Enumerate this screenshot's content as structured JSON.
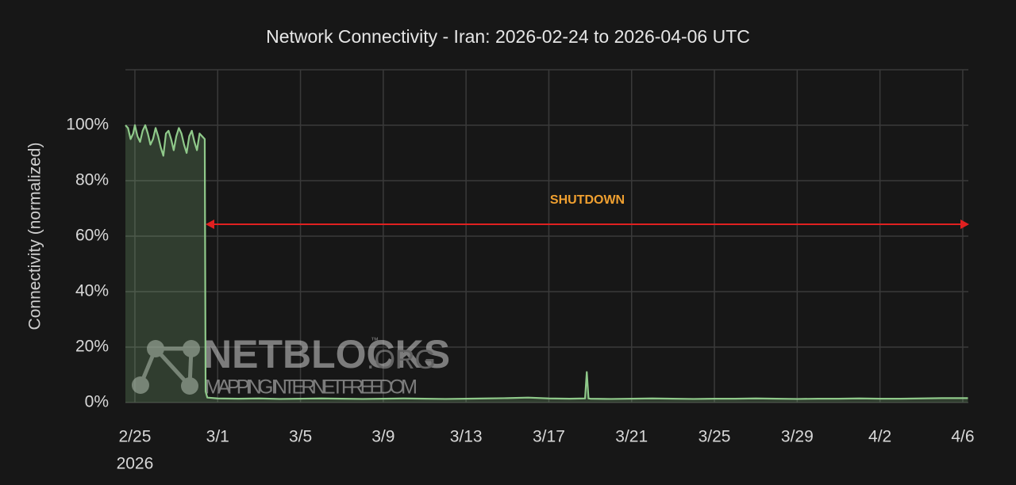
{
  "chart_data": {
    "type": "line",
    "title": "Network Connectivity - Iran: 2026-02-24 to 2026-04-06 UTC",
    "ylabel": "Connectivity (normalized)",
    "x": [
      "2026-02-24T13:00Z",
      "2026-02-24T16:00Z",
      "2026-02-24T19:00Z",
      "2026-02-24T22:00Z",
      "2026-02-25T00:00Z",
      "2026-02-25T03:00Z",
      "2026-02-25T06:00Z",
      "2026-02-25T09:00Z",
      "2026-02-25T12:00Z",
      "2026-02-25T15:00Z",
      "2026-02-25T18:00Z",
      "2026-02-25T21:00Z",
      "2026-02-26T00:00Z",
      "2026-02-26T03:00Z",
      "2026-02-26T06:00Z",
      "2026-02-26T09:00Z",
      "2026-02-26T12:00Z",
      "2026-02-26T15:00Z",
      "2026-02-26T18:00Z",
      "2026-02-26T21:00Z",
      "2026-02-27T00:00Z",
      "2026-02-27T03:00Z",
      "2026-02-27T06:00Z",
      "2026-02-27T09:00Z",
      "2026-02-27T12:00Z",
      "2026-02-27T15:00Z",
      "2026-02-27T18:00Z",
      "2026-02-27T21:00Z",
      "2026-02-28T00:00Z",
      "2026-02-28T03:00Z",
      "2026-02-28T06:00Z",
      "2026-02-28T09:00Z",
      "2026-02-28T10:00Z",
      "2026-02-28T12:00Z",
      "2026-03-01T00:00Z",
      "2026-03-02T00:00Z",
      "2026-03-03T00:00Z",
      "2026-03-04T00:00Z",
      "2026-03-05T00:00Z",
      "2026-03-06T00:00Z",
      "2026-03-07T00:00Z",
      "2026-03-08T00:00Z",
      "2026-03-09T00:00Z",
      "2026-03-10T00:00Z",
      "2026-03-11T00:00Z",
      "2026-03-12T00:00Z",
      "2026-03-13T00:00Z",
      "2026-03-14T00:00Z",
      "2026-03-15T00:00Z",
      "2026-03-16T00:00Z",
      "2026-03-17T00:00Z",
      "2026-03-18T00:00Z",
      "2026-03-18T18:00Z",
      "2026-03-18T20:00Z",
      "2026-03-18T22:00Z",
      "2026-03-19T00:00Z",
      "2026-03-20T00:00Z",
      "2026-03-21T00:00Z",
      "2026-03-22T00:00Z",
      "2026-03-23T00:00Z",
      "2026-03-24T00:00Z",
      "2026-03-25T00:00Z",
      "2026-03-26T00:00Z",
      "2026-03-27T00:00Z",
      "2026-03-28T00:00Z",
      "2026-03-29T00:00Z",
      "2026-03-30T00:00Z",
      "2026-03-31T00:00Z",
      "2026-04-01T00:00Z",
      "2026-04-02T00:00Z",
      "2026-04-03T00:00Z",
      "2026-04-04T00:00Z",
      "2026-04-05T00:00Z",
      "2026-04-06T00:00Z",
      "2026-04-06T06:00Z"
    ],
    "series": [
      {
        "name": "Iran",
        "color": "#8fc98a",
        "values": [
          100,
          99,
          95,
          97,
          100,
          96,
          94,
          98,
          100,
          97,
          93,
          95,
          99,
          96,
          92,
          89,
          97,
          98,
          95,
          91,
          96,
          99,
          97,
          93,
          90,
          96,
          98,
          94,
          91,
          97,
          96,
          95,
          4,
          1.8,
          1.5,
          1.4,
          1.5,
          1.3,
          1.4,
          1.5,
          1.4,
          1.3,
          1.4,
          1.5,
          1.4,
          1.3,
          1.4,
          1.5,
          1.6,
          1.8,
          1.5,
          1.4,
          1.5,
          11,
          1.5,
          1.4,
          1.3,
          1.4,
          1.5,
          1.4,
          1.3,
          1.4,
          1.4,
          1.5,
          1.4,
          1.3,
          1.4,
          1.4,
          1.5,
          1.4,
          1.4,
          1.5,
          1.6,
          1.6,
          1.6
        ]
      }
    ],
    "xlim": [
      "2026-02-24T13:00Z",
      "2026-04-06T06:30Z"
    ],
    "xticks": [
      {
        "value": "2026-02-25",
        "label": "2/25"
      },
      {
        "value": "2026-03-01",
        "label": "3/1"
      },
      {
        "value": "2026-03-05",
        "label": "3/5"
      },
      {
        "value": "2026-03-09",
        "label": "3/9"
      },
      {
        "value": "2026-03-13",
        "label": "3/13"
      },
      {
        "value": "2026-03-17",
        "label": "3/17"
      },
      {
        "value": "2026-03-21",
        "label": "3/21"
      },
      {
        "value": "2026-03-25",
        "label": "3/25"
      },
      {
        "value": "2026-03-29",
        "label": "3/29"
      },
      {
        "value": "2026-04-02",
        "label": "4/2"
      },
      {
        "value": "2026-04-06",
        "label": "4/6"
      }
    ],
    "x_year_label": "2026",
    "ylim": [
      0,
      120
    ],
    "yticks": [
      {
        "value": 0,
        "label": "0%"
      },
      {
        "value": 20,
        "label": "20%"
      },
      {
        "value": 40,
        "label": "40%"
      },
      {
        "value": 60,
        "label": "60%"
      },
      {
        "value": 80,
        "label": "80%"
      },
      {
        "value": 100,
        "label": "100%"
      }
    ],
    "grid": true,
    "annotation": "SHUTDOWN",
    "watermark": {
      "name": "NETBLOCKS",
      "trademark": "™",
      "suffix": ".ORG",
      "tagline": "MAPPING INTERNET FREEDOM"
    }
  }
}
